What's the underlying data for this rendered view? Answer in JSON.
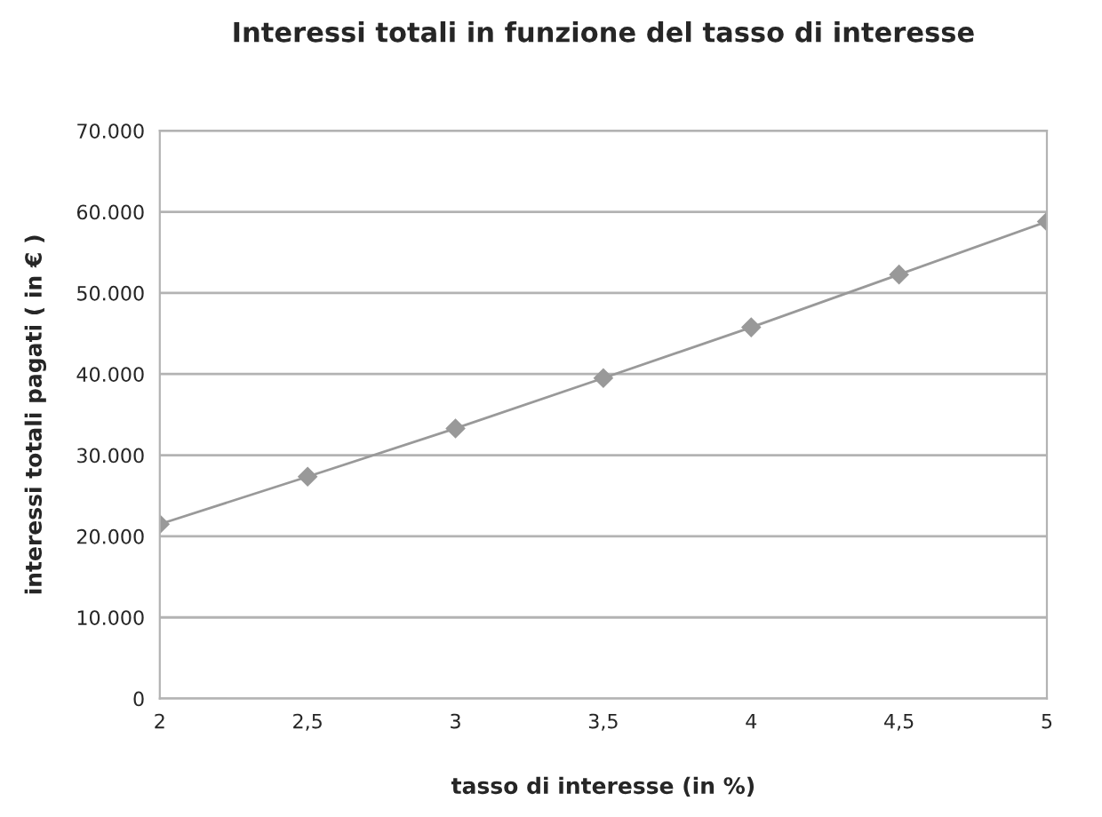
{
  "chart_data": {
    "type": "line",
    "title": "Interessi totali in funzione del tasso di interesse",
    "xlabel": "tasso di interesse (in %)",
    "ylabel": "interessi totali pagati ( in € )",
    "x": [
      2,
      2.5,
      3,
      3.5,
      4,
      4.5,
      5
    ],
    "series": [
      {
        "color": "#999999",
        "values": [
          21500,
          27350,
          33300,
          39500,
          45760,
          52270,
          58800
        ]
      }
    ],
    "xlim": [
      2,
      5
    ],
    "xticks": [
      2,
      {
        "value": 2.5,
        "label": "2,5"
      },
      3,
      {
        "value": 3.5,
        "label": "3,5"
      },
      4,
      {
        "value": 4.5,
        "label": "4,5"
      },
      5
    ],
    "ylim": [
      0,
      70000
    ],
    "yticks": [
      0,
      {
        "value": 10000,
        "label": "10.000"
      },
      {
        "value": 20000,
        "label": "20.000"
      },
      {
        "value": 30000,
        "label": "30.000"
      },
      {
        "value": 40000,
        "label": "40.000"
      },
      {
        "value": 50000,
        "label": "50.000"
      },
      {
        "value": 60000,
        "label": "60.000"
      },
      {
        "value": 70000,
        "label": "70.000"
      }
    ],
    "grid": "y",
    "marker": "diamond",
    "line_style": "solid",
    "legend": false
  }
}
